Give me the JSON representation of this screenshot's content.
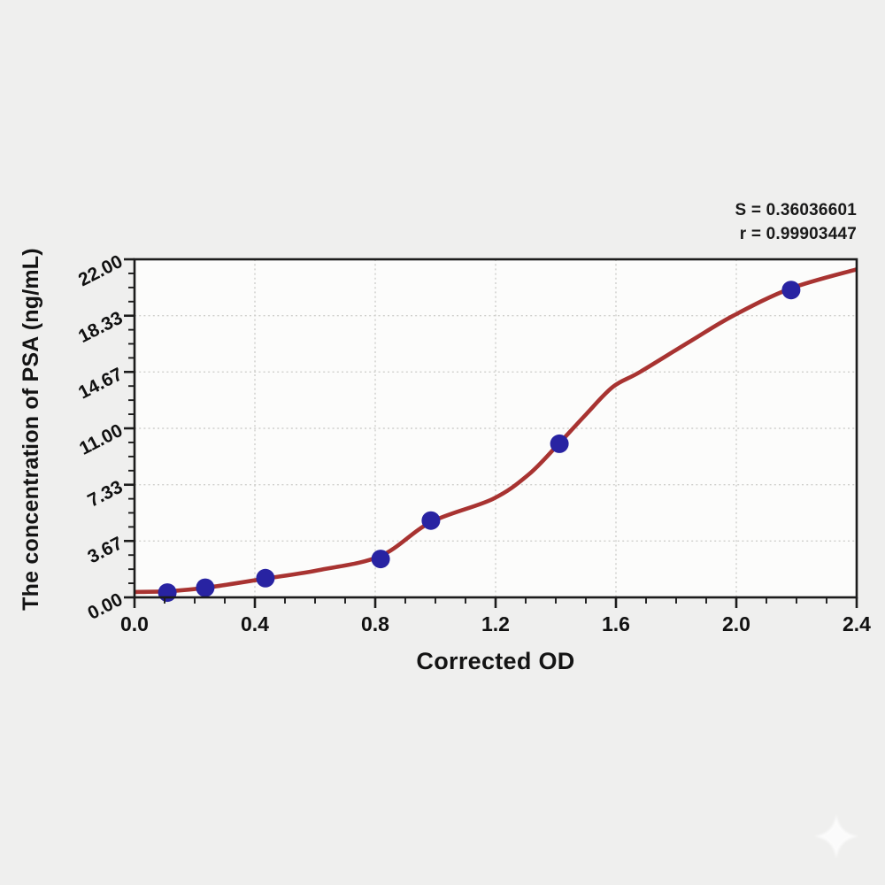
{
  "chart_data": {
    "type": "scatter",
    "title": "",
    "xlabel": "Corrected OD",
    "ylabel": "The concentration of PSA (ng/mL)",
    "xlim": [
      0.0,
      2.4
    ],
    "ylim": [
      0.0,
      22.0
    ],
    "x_tick_labels": [
      "0.0",
      "0.4",
      "0.8",
      "1.2",
      "1.6",
      "2.0",
      "2.4"
    ],
    "y_tick_labels": [
      "0.00",
      "3.67",
      "7.33",
      "11.00",
      "14.67",
      "18.33",
      "22.00"
    ],
    "minor_ticks_between_majors": 3,
    "grid": "dotted lines at inner major ticks, both axes",
    "legend_position": "none",
    "series": [
      {
        "name": "standard points",
        "type": "scatter",
        "marker": "filled-circle",
        "x": [
          0.109,
          0.235,
          0.435,
          0.818,
          0.985,
          1.412,
          2.182
        ],
        "y": [
          0.31,
          0.63,
          1.25,
          2.5,
          5.0,
          10.0,
          20.0
        ]
      },
      {
        "name": "fitted sigmoid curve",
        "type": "line",
        "x": [
          0.0,
          0.11,
          0.235,
          0.435,
          0.62,
          0.818,
          0.985,
          1.19,
          1.31,
          1.41,
          1.5,
          1.59,
          1.68,
          1.85,
          1.99,
          2.18,
          2.4
        ],
        "y": [
          0.35,
          0.4,
          0.62,
          1.22,
          1.8,
          2.7,
          4.9,
          6.4,
          8.0,
          10.0,
          11.9,
          13.7,
          14.67,
          16.7,
          18.33,
          20.1,
          21.35
        ]
      }
    ],
    "annotations": [
      "S = 0.36036601",
      "r = 0.99903447"
    ]
  },
  "colors": {
    "page_bg": "#efefee",
    "plot_bg": "#fcfcfb",
    "frame": "#1c1c1c",
    "tick": "#1c1c1c",
    "tick_text": "#111111",
    "grid": "#cfcfcc",
    "curve": "#a83331",
    "points": "#2823a2",
    "watermark": "#ffffff"
  },
  "watermark": {
    "icon": "sparkle-star-icon"
  }
}
